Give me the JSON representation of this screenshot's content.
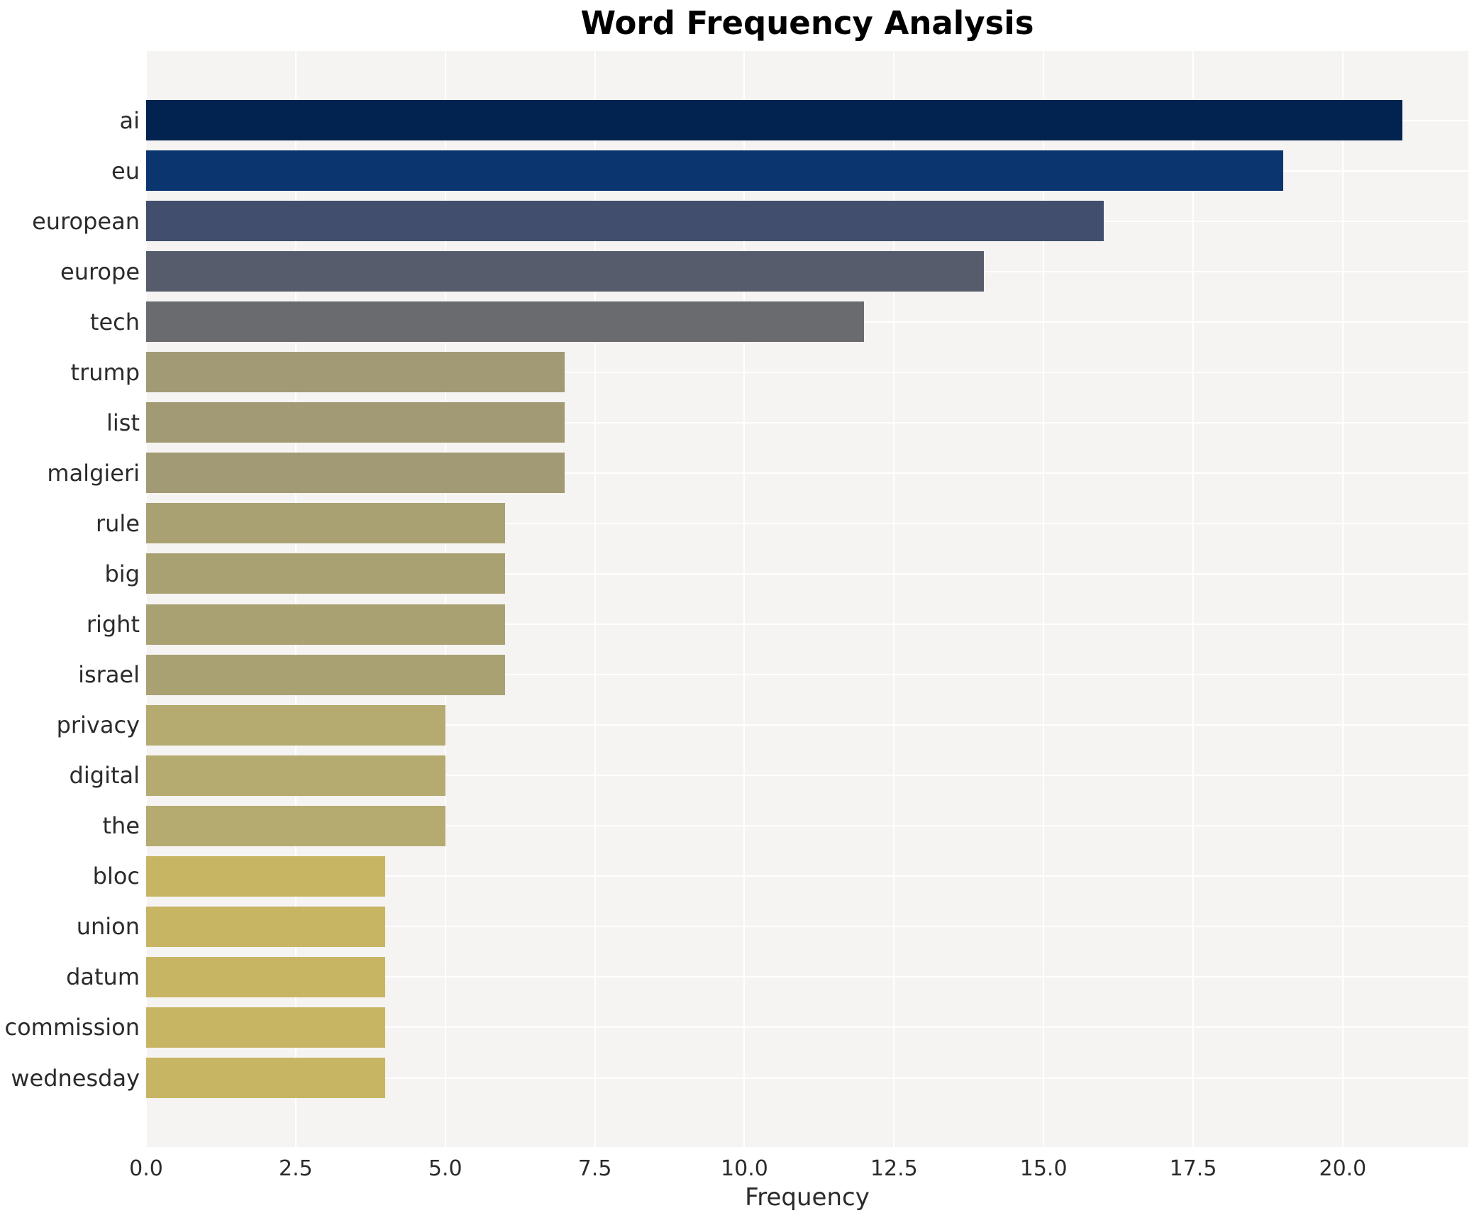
{
  "figure": {
    "title": "Word Frequency Analysis"
  },
  "chart_data": {
    "type": "bar",
    "orientation": "horizontal",
    "title": "Word Frequency Analysis",
    "xlabel": "Frequency",
    "ylabel": "",
    "grid": true,
    "legend": false,
    "xlim": [
      0,
      22.1
    ],
    "xtick_labels": [
      "0.0",
      "2.5",
      "5.0",
      "7.5",
      "10.0",
      "12.5",
      "15.0",
      "17.5",
      "20.0"
    ],
    "xtick_values": [
      0,
      2.5,
      5,
      7.5,
      10,
      12.5,
      15,
      17.5,
      20
    ],
    "categories": [
      "ai",
      "eu",
      "european",
      "europe",
      "tech",
      "trump",
      "list",
      "malgieri",
      "rule",
      "big",
      "right",
      "israel",
      "privacy",
      "digital",
      "the",
      "bloc",
      "union",
      "datum",
      "commission",
      "wednesday"
    ],
    "values": [
      21,
      19,
      16,
      14,
      12,
      7,
      7,
      7,
      6,
      6,
      6,
      6,
      5,
      5,
      5,
      4,
      4,
      4,
      4,
      4
    ],
    "bar_colors": [
      "#022350",
      "#0b356f",
      "#414e6e",
      "#565c6c",
      "#6a6b6e",
      "#a29a74",
      "#a29a74",
      "#a29a74",
      "#aaa173",
      "#aaa173",
      "#aaa173",
      "#aaa173",
      "#b5aa70",
      "#b5aa70",
      "#b5aa70",
      "#c7b564",
      "#c7b564",
      "#c7b564",
      "#c7b564",
      "#c7b564"
    ],
    "plot_bg_color": "#f5f4f2",
    "grid_color": "#ffffff",
    "text_color": "#2b2b2b",
    "title_color": "#000000"
  }
}
